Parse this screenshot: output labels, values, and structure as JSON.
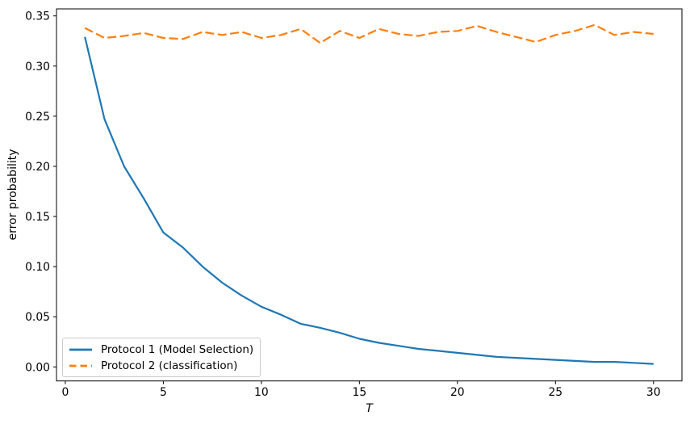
{
  "chart_data": {
    "type": "line",
    "title": "",
    "xlabel": "T",
    "ylabel": "error probability",
    "xlim": [
      -0.45,
      31.45
    ],
    "ylim": [
      -0.014,
      0.357
    ],
    "xticks": [
      0,
      5,
      10,
      15,
      20,
      25,
      30
    ],
    "yticks": [
      0.0,
      0.05,
      0.1,
      0.15,
      0.2,
      0.25,
      0.3,
      0.35
    ],
    "grid": false,
    "legend_position": "lower left",
    "axis_color": "#000000",
    "x": [
      1,
      2,
      3,
      4,
      5,
      6,
      7,
      8,
      9,
      10,
      11,
      12,
      13,
      14,
      15,
      16,
      17,
      18,
      19,
      20,
      21,
      22,
      23,
      24,
      25,
      26,
      27,
      28,
      29,
      30
    ],
    "series": [
      {
        "name": "Protocol 1 (Model Selection)",
        "color": "#1f77b4",
        "style": "solid",
        "values": [
          0.329,
          0.247,
          0.2,
          0.168,
          0.134,
          0.119,
          0.1,
          0.084,
          0.071,
          0.06,
          0.052,
          0.043,
          0.039,
          0.034,
          0.028,
          0.024,
          0.021,
          0.018,
          0.016,
          0.014,
          0.012,
          0.01,
          0.009,
          0.008,
          0.007,
          0.006,
          0.005,
          0.005,
          0.004,
          0.003
        ]
      },
      {
        "name": "Protocol 2 (classification)",
        "color": "#ff7f0e",
        "style": "dashed",
        "values": [
          0.338,
          0.328,
          0.33,
          0.333,
          0.328,
          0.327,
          0.334,
          0.331,
          0.334,
          0.328,
          0.331,
          0.337,
          0.323,
          0.335,
          0.328,
          0.337,
          0.332,
          0.33,
          0.334,
          0.335,
          0.34,
          0.334,
          0.329,
          0.324,
          0.331,
          0.335,
          0.341,
          0.331,
          0.334,
          0.332
        ]
      }
    ]
  }
}
